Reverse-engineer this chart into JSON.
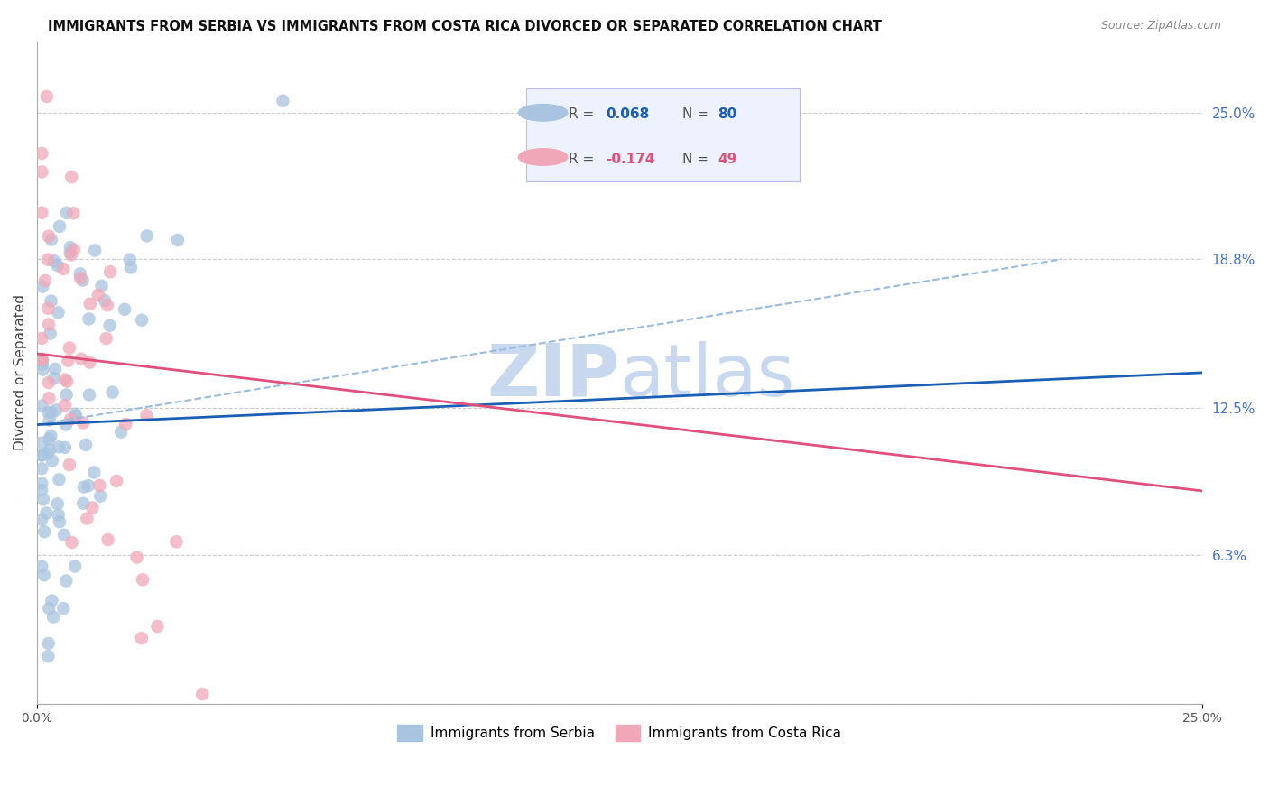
{
  "title": "IMMIGRANTS FROM SERBIA VS IMMIGRANTS FROM COSTA RICA DIVORCED OR SEPARATED CORRELATION CHART",
  "source": "Source: ZipAtlas.com",
  "ylabel": "Divorced or Separated",
  "xlim": [
    0.0,
    0.25
  ],
  "ylim": [
    0.0,
    0.28
  ],
  "ytick_right_labels": [
    "25.0%",
    "18.8%",
    "12.5%",
    "6.3%"
  ],
  "ytick_right_values": [
    0.25,
    0.188,
    0.125,
    0.063
  ],
  "grid_color": "#cccccc",
  "background_color": "#ffffff",
  "serbia_color": "#a8c4e0",
  "costa_rica_color": "#f0a8b8",
  "serbia_line_color": "#1a5fb4",
  "costa_rica_line_color": "#e0507a",
  "dashed_line_color": "#99bbdd",
  "serbia_R": 0.068,
  "serbia_N": 80,
  "costa_rica_R": -0.174,
  "costa_rica_N": 49,
  "watermark_zip": "ZIP",
  "watermark_atlas": "atlas",
  "watermark_color": "#c8d8ef",
  "legend_bg": "#eef2ff",
  "legend_border": "#bbbbee"
}
